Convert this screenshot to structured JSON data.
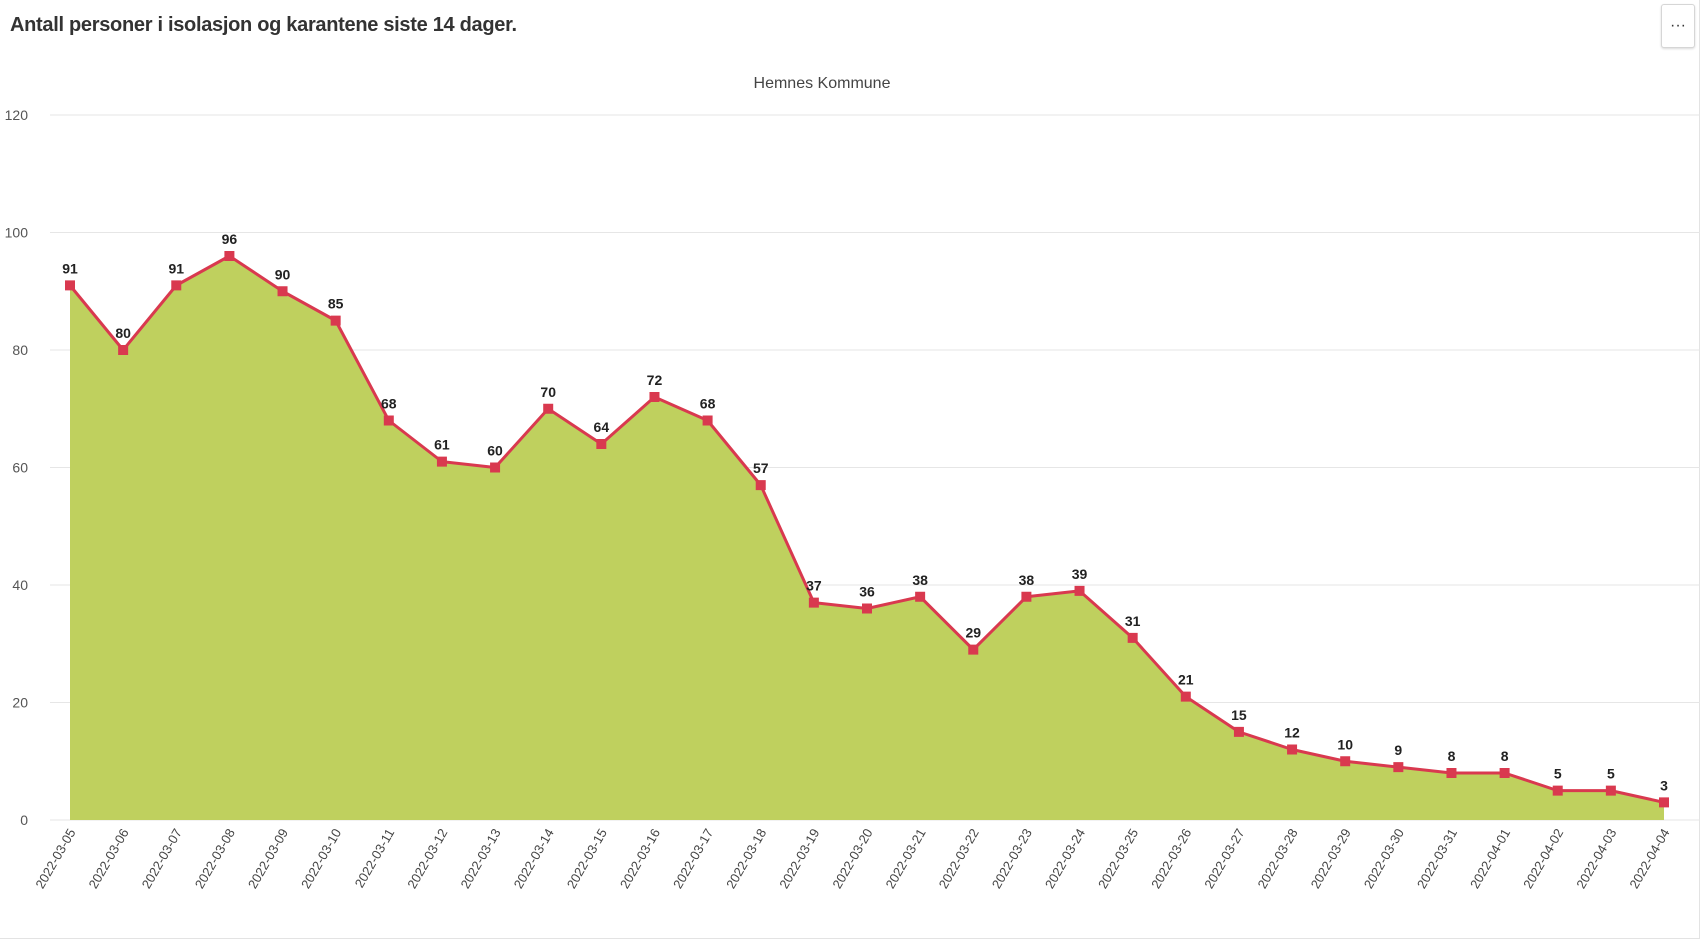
{
  "header": {
    "title": "Antall personer i isolasjon og karantene siste 14 dager.",
    "menu_label": "···"
  },
  "chart_data": {
    "type": "area",
    "title": "Hemnes Kommune",
    "xlabel": "",
    "ylabel": "",
    "ylim": [
      0,
      120
    ],
    "yticks": [
      0,
      20,
      40,
      60,
      80,
      100,
      120
    ],
    "grid": true,
    "fill_color": "#bfd05e",
    "line_color": "#d9394f",
    "categories": [
      "2022-03-05",
      "2022-03-06",
      "2022-03-07",
      "2022-03-08",
      "2022-03-09",
      "2022-03-10",
      "2022-03-11",
      "2022-03-12",
      "2022-03-13",
      "2022-03-14",
      "2022-03-15",
      "2022-03-16",
      "2022-03-17",
      "2022-03-18",
      "2022-03-19",
      "2022-03-20",
      "2022-03-21",
      "2022-03-22",
      "2022-03-23",
      "2022-03-24",
      "2022-03-25",
      "2022-03-26",
      "2022-03-27",
      "2022-03-28",
      "2022-03-29",
      "2022-03-30",
      "2022-03-31",
      "2022-04-01",
      "2022-04-02",
      "2022-04-03",
      "2022-04-04"
    ],
    "series": [
      {
        "values": [
          91,
          80,
          91,
          96,
          90,
          85,
          68,
          61,
          60,
          70,
          64,
          72,
          68,
          57,
          37,
          36,
          38,
          29,
          38,
          39,
          31,
          21,
          15,
          12,
          10,
          9,
          8,
          8,
          5,
          5,
          3
        ]
      }
    ]
  }
}
